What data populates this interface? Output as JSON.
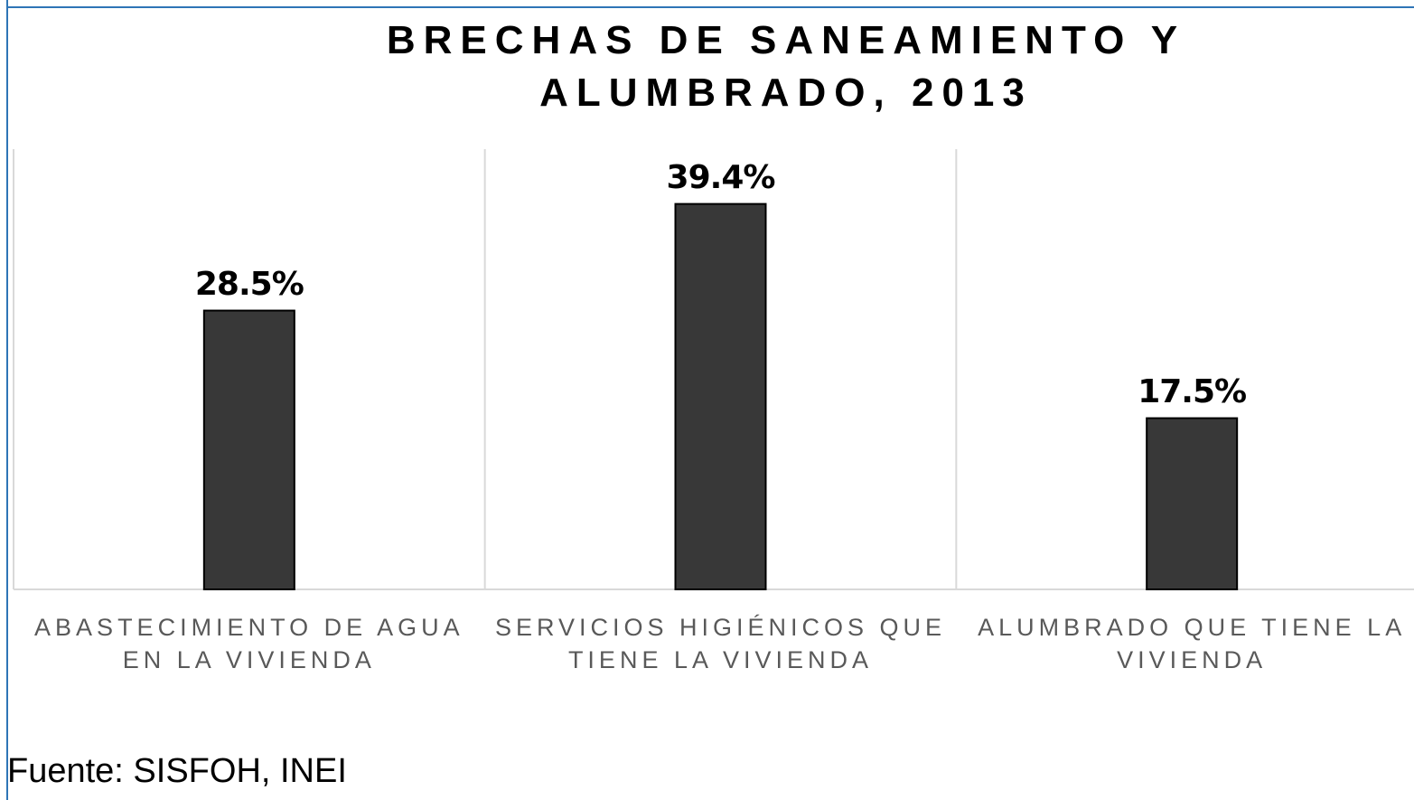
{
  "chart_data": {
    "type": "bar",
    "title": "BRECHAS DE SANEAMIENTO Y ALUMBRADO, 2013",
    "categories": [
      "ABASTECIMIENTO DE AGUA EN LA VIVIENDA",
      "SERVICIOS HIGIÉNICOS QUE TIENE LA VIVIENDA",
      "ALUMBRADO QUE TIENE LA VIVIENDA"
    ],
    "values": [
      28.5,
      39.4,
      17.5
    ],
    "value_labels": [
      "28.5%",
      "39.4%",
      "17.5%"
    ],
    "color": "#383838",
    "ylim": [
      0,
      45
    ],
    "source": "Fuente: SISFOH, INEI"
  }
}
